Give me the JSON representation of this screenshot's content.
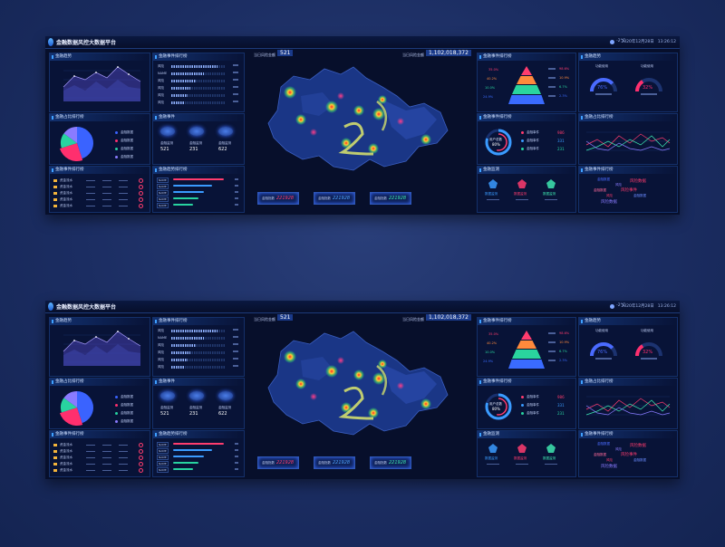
{
  "app": {
    "title": "金融数据风控大数据平台",
    "weather": "-2°C",
    "date": "2020年12月28日",
    "time": "13:26:12"
  },
  "boards": [
    {
      "id": "top",
      "label": "top-dashboard"
    },
    {
      "id": "bottom",
      "label": "bottom-dashboard"
    }
  ],
  "left": {
    "panel1_title": "金融趋势",
    "panel2_title": "金融占比排行榜",
    "panel3_title": "金融事件排行榜",
    "pie_legend": [
      "金融数据",
      "金融数据",
      "金融数据",
      "金融数据"
    ],
    "pie_slices": [
      {
        "label": "金融数据",
        "value": 45,
        "color": "#3a63ff"
      },
      {
        "label": "金融数据",
        "value": 25,
        "color": "#ff2f6e"
      },
      {
        "label": "金融数据",
        "value": 15,
        "color": "#28d3a0"
      },
      {
        "label": "金融数据",
        "value": 15,
        "color": "#8a7bff"
      }
    ],
    "ranking_rows": [
      "资金流水",
      "资金流水",
      "资金流水",
      "资金流水",
      "资金流水"
    ]
  },
  "center_left": {
    "panel1_title": "金融事件排行榜",
    "panel2_title": "金融事件",
    "panel3_title": "金融趋势排行榜",
    "bar_rows": [
      {
        "label": "风险",
        "value": 0.85
      },
      {
        "label": "NAME",
        "value": 0.6
      },
      {
        "label": "风险",
        "value": 0.45
      },
      {
        "label": "风险",
        "value": 0.35
      },
      {
        "label": "风险",
        "value": 0.3
      },
      {
        "label": "风险",
        "value": 0.25
      }
    ],
    "icons": [
      {
        "label": "金融监测",
        "value": "521"
      },
      {
        "label": "金融监测",
        "value": "231"
      },
      {
        "label": "金融监测",
        "value": "622"
      }
    ],
    "trend_rows": [
      {
        "label": "NAME",
        "value": 0.9,
        "color": "#ff3c6e"
      },
      {
        "label": "NAME",
        "value": 0.7,
        "color": "#3a9bff"
      },
      {
        "label": "NAME",
        "value": 0.55,
        "color": "#3a9bff"
      },
      {
        "label": "NAME",
        "value": 0.45,
        "color": "#28d3a0"
      },
      {
        "label": "NAME",
        "value": 0.35,
        "color": "#28d3a0"
      }
    ]
  },
  "center": {
    "stat_left_label": "当日风险金额",
    "stat_left_value": "521",
    "stat_right_label": "当日风险金额",
    "stat_right_value": "1,102,018,372",
    "buttons": [
      {
        "label": "金融指数",
        "value": "221928",
        "color": "#ff3c6e"
      },
      {
        "label": "金融指数",
        "value": "221928",
        "color": "#4fa3ff"
      },
      {
        "label": "金融指数",
        "value": "221928",
        "color": "#3ee8b0"
      }
    ]
  },
  "right_center": {
    "panel1_title": "金融事件排行榜",
    "panel2_title": "金融事件排行榜",
    "panel3_title": "金融监测",
    "pyramid_values": [
      "35.0%",
      "40.2%",
      "10.0%",
      "24.9%"
    ],
    "pyramid_right": [
      "98.6%",
      "10.9%",
      "6.7%",
      "2.3%"
    ],
    "ring_label": "用户总数",
    "ring_value": "80%",
    "ring_items": [
      {
        "label": "金融事件",
        "value": "986",
        "color": "#ff3c6e"
      },
      {
        "label": "金融事件",
        "value": "331",
        "color": "#3a9bff"
      },
      {
        "label": "金融事件",
        "value": "231",
        "color": "#28d3a0"
      }
    ],
    "monitor": [
      {
        "label": "数据监测",
        "color": "#3a9bff"
      },
      {
        "label": "数据监测",
        "color": "#ff3c6e"
      },
      {
        "label": "数据监测",
        "color": "#3ee8b0"
      }
    ]
  },
  "right": {
    "panel1_title": "金融趋势",
    "panel2_title": "金融占比排行榜",
    "panel3_title": "金融事件排行榜",
    "gauges": [
      {
        "label": "功能使用",
        "value": "76%",
        "fill": 0.76,
        "color": "#4a6bff"
      },
      {
        "label": "功能使用",
        "value": "32%",
        "fill": 0.32,
        "color": "#ff2f6e"
      }
    ],
    "words": [
      "金融数据",
      "风险数据",
      "风险",
      "金融数据",
      "风险事件",
      "金融数据",
      "风险",
      "风险数据"
    ]
  }
}
